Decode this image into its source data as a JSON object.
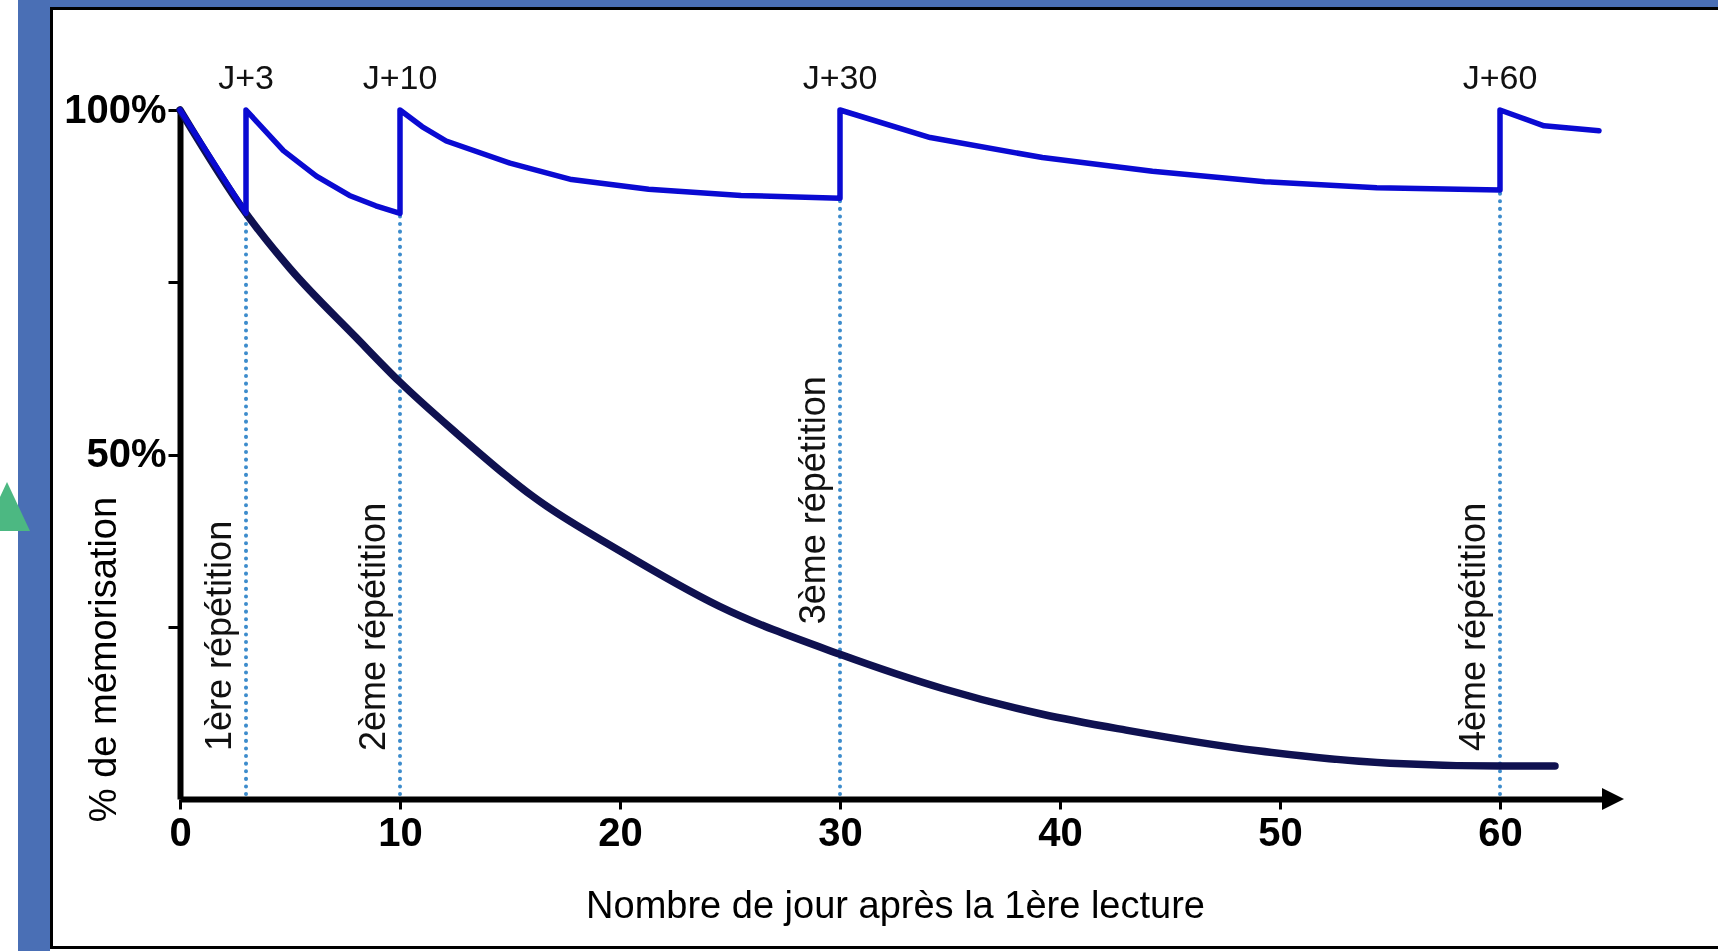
{
  "chart_data": {
    "type": "line",
    "xlabel": "Nombre de jour après la 1ère lecture",
    "ylabel": "% de mémorisation",
    "xlim": [
      0,
      65
    ],
    "xticks": [
      0,
      10,
      20,
      30,
      40,
      50,
      60
    ],
    "ylim": [
      0,
      100
    ],
    "yticks": [
      {
        "value": 25,
        "label": null
      },
      {
        "value": 50,
        "label": "50%"
      },
      {
        "value": 75,
        "label": null
      },
      {
        "value": 100,
        "label": "100%"
      }
    ],
    "series": [
      {
        "color": "#0f1150",
        "x": [
          0,
          3,
          5,
          8,
          10,
          12.6,
          14.8,
          16,
          20,
          24.5,
          30,
          34.7,
          39.2,
          43,
          49,
          55,
          60,
          62.5
        ],
        "values": [
          100,
          85,
          77,
          67,
          60.5,
          53,
          47,
          44,
          36,
          28,
          21,
          16,
          12.3,
          10,
          7,
          5.2,
          4.8,
          4.8
        ]
      },
      {
        "color": "#0a0ad2",
        "x": [
          0,
          3,
          3,
          4.7,
          6.2,
          7.7,
          8.9,
          10,
          10,
          11,
          12.1,
          15,
          17.8,
          21.3,
          25.5,
          30,
          30,
          34.1,
          39.2,
          44.2,
          49.3,
          54.4,
          60,
          60,
          62,
          64.5
        ],
        "values": [
          100,
          85,
          100,
          94.1,
          90.4,
          87.6,
          86.1,
          85,
          100,
          97.6,
          95.5,
          92.3,
          89.9,
          88.5,
          87.6,
          87.2,
          100,
          96,
          93.1,
          91.1,
          89.6,
          88.7,
          88.4,
          100,
          97.7,
          97
        ]
      }
    ],
    "ref_lines": [
      {
        "axis": "x",
        "value": 3,
        "label": "1ère répétition",
        "color": "#3d8ccc",
        "line_style": "dotted"
      },
      {
        "axis": "x",
        "value": 10,
        "label": "2ème répétition",
        "color": "#3d8ccc",
        "line_style": "dotted"
      },
      {
        "axis": "x",
        "value": 30,
        "label": "3ème répétition",
        "color": "#3d8ccc",
        "line_style": "dotted"
      },
      {
        "axis": "x",
        "value": 60,
        "label": "4ème répétition",
        "color": "#3d8ccc",
        "line_style": "dotted"
      }
    ],
    "annotations": [
      {
        "text": "J+3",
        "x": 3,
        "y": 100
      },
      {
        "text": "J+10",
        "x": 10,
        "y": 100
      },
      {
        "text": "J+30",
        "x": 30,
        "y": 100
      },
      {
        "text": "J+60",
        "x": 60,
        "y": 100
      }
    ]
  }
}
